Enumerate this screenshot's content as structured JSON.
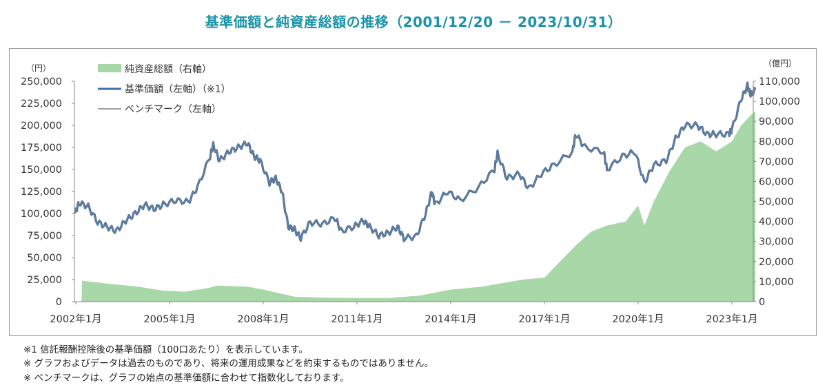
{
  "title": "基準価額と純資産総額の推移（2001/12/20 － 2023/10/31）",
  "notes": [
    "※1 信託報酬控除後の基準価額（100口あたり）を表示しています。",
    "※ グラフおよびデータは過去のものであり、将来の運用成果などを約束するものではありません。",
    "※ ベンチマークは、グラフの始点の基準価額に合わせて指数化しております。"
  ],
  "chart_data": {
    "type": "line+area",
    "title": "基準価額と純資産総額の推移（2001/12/20 － 2023/10/31）",
    "left_axis": {
      "unit": "（円）",
      "range": [
        0,
        250000
      ],
      "ticks": [
        "0",
        "25,000",
        "50,000",
        "75,000",
        "100,000",
        "125,000",
        "150,000",
        "175,000",
        "200,000",
        "225,000",
        "250,000"
      ]
    },
    "right_axis": {
      "unit": "（億円）",
      "range": [
        0,
        110000
      ],
      "ticks": [
        "0",
        "10,000",
        "20,000",
        "30,000",
        "40,000",
        "50,000",
        "60,000",
        "70,000",
        "80,000",
        "90,000",
        "100,000",
        "110,000"
      ]
    },
    "x_axis": {
      "range": [
        "2001-12-20",
        "2023-10-31"
      ],
      "ticks": [
        "2002年1月",
        "2005年1月",
        "2008年1月",
        "2011年1月",
        "2014年1月",
        "2017年1月",
        "2020年1月",
        "2023年1月"
      ]
    },
    "grid": false,
    "legend_position": "top-left",
    "colors": {
      "net_assets": "#a8d8a8",
      "nav": "#3f72ad",
      "benchmark": "#7f7f7f"
    },
    "series": [
      {
        "name": "純資産総額（右軸）",
        "type": "area",
        "axis": "right",
        "x": [
          2001.97,
          2002.18,
          2002.2,
          2003.0,
          2004.0,
          2004.8,
          2005.5,
          2006.3,
          2006.5,
          2007.5,
          2008.0,
          2009.0,
          2010.0,
          2011.0,
          2012.0,
          2013.0,
          2014.0,
          2015.0,
          2016.3,
          2017.0,
          2017.5,
          2018.0,
          2018.5,
          2019.0,
          2019.6,
          2020.0,
          2020.2,
          2020.5,
          2021.0,
          2021.5,
          2022.0,
          2022.5,
          2023.0,
          2023.3,
          2023.6,
          2023.75
        ],
        "y": [
          0,
          0,
          10500,
          9000,
          7500,
          5500,
          5000,
          7000,
          8000,
          7500,
          6000,
          2500,
          2000,
          1800,
          1800,
          3000,
          6000,
          7500,
          11000,
          12000,
          20000,
          28000,
          35000,
          38000,
          40000,
          48000,
          38000,
          50000,
          65000,
          77000,
          80000,
          75000,
          80000,
          88000,
          93000,
          95000
        ]
      },
      {
        "name": "基準価額（左軸）（※1）",
        "type": "line",
        "axis": "left",
        "x": [
          2001.97,
          2002.1,
          2002.4,
          2002.7,
          2003.0,
          2003.3,
          2003.6,
          2003.9,
          2004.2,
          2004.5,
          2004.8,
          2005.2,
          2005.6,
          2005.9,
          2006.3,
          2006.4,
          2006.6,
          2006.9,
          2007.2,
          2007.5,
          2007.7,
          2007.9,
          2008.2,
          2008.4,
          2008.6,
          2008.8,
          2009.0,
          2009.2,
          2009.5,
          2009.9,
          2010.3,
          2010.5,
          2010.9,
          2011.2,
          2011.4,
          2011.7,
          2012.0,
          2012.3,
          2012.5,
          2012.9,
          2013.2,
          2013.4,
          2013.5,
          2013.9,
          2014.3,
          2014.9,
          2015.4,
          2015.5,
          2015.8,
          2016.2,
          2016.5,
          2016.9,
          2017.3,
          2017.9,
          2018.0,
          2018.3,
          2018.9,
          2019.0,
          2019.5,
          2019.9,
          2020.2,
          2020.5,
          2020.9,
          2021.2,
          2021.5,
          2021.9,
          2022.2,
          2022.5,
          2022.9,
          2023.0,
          2023.3,
          2023.5,
          2023.6,
          2023.75
        ],
        "y": [
          100000,
          112000,
          108000,
          90000,
          85000,
          80000,
          92000,
          100000,
          110000,
          105000,
          110000,
          115000,
          113000,
          130000,
          165000,
          178000,
          160000,
          170000,
          175000,
          180000,
          165000,
          160000,
          135000,
          140000,
          125000,
          85000,
          82000,
          72000,
          90000,
          88000,
          95000,
          80000,
          85000,
          92000,
          85000,
          75000,
          78000,
          85000,
          72000,
          74000,
          100000,
          125000,
          110000,
          125000,
          115000,
          130000,
          150000,
          168000,
          140000,
          145000,
          128000,
          145000,
          155000,
          170000,
          190000,
          175000,
          170000,
          150000,
          165000,
          170000,
          135000,
          155000,
          160000,
          185000,
          200000,
          200000,
          190000,
          190000,
          190000,
          195000,
          230000,
          245000,
          235000,
          240000
        ]
      },
      {
        "name": "ベンチマーク（左軸）",
        "type": "line",
        "axis": "left",
        "same_as": "基準価額（左軸）（※1）"
      }
    ]
  }
}
